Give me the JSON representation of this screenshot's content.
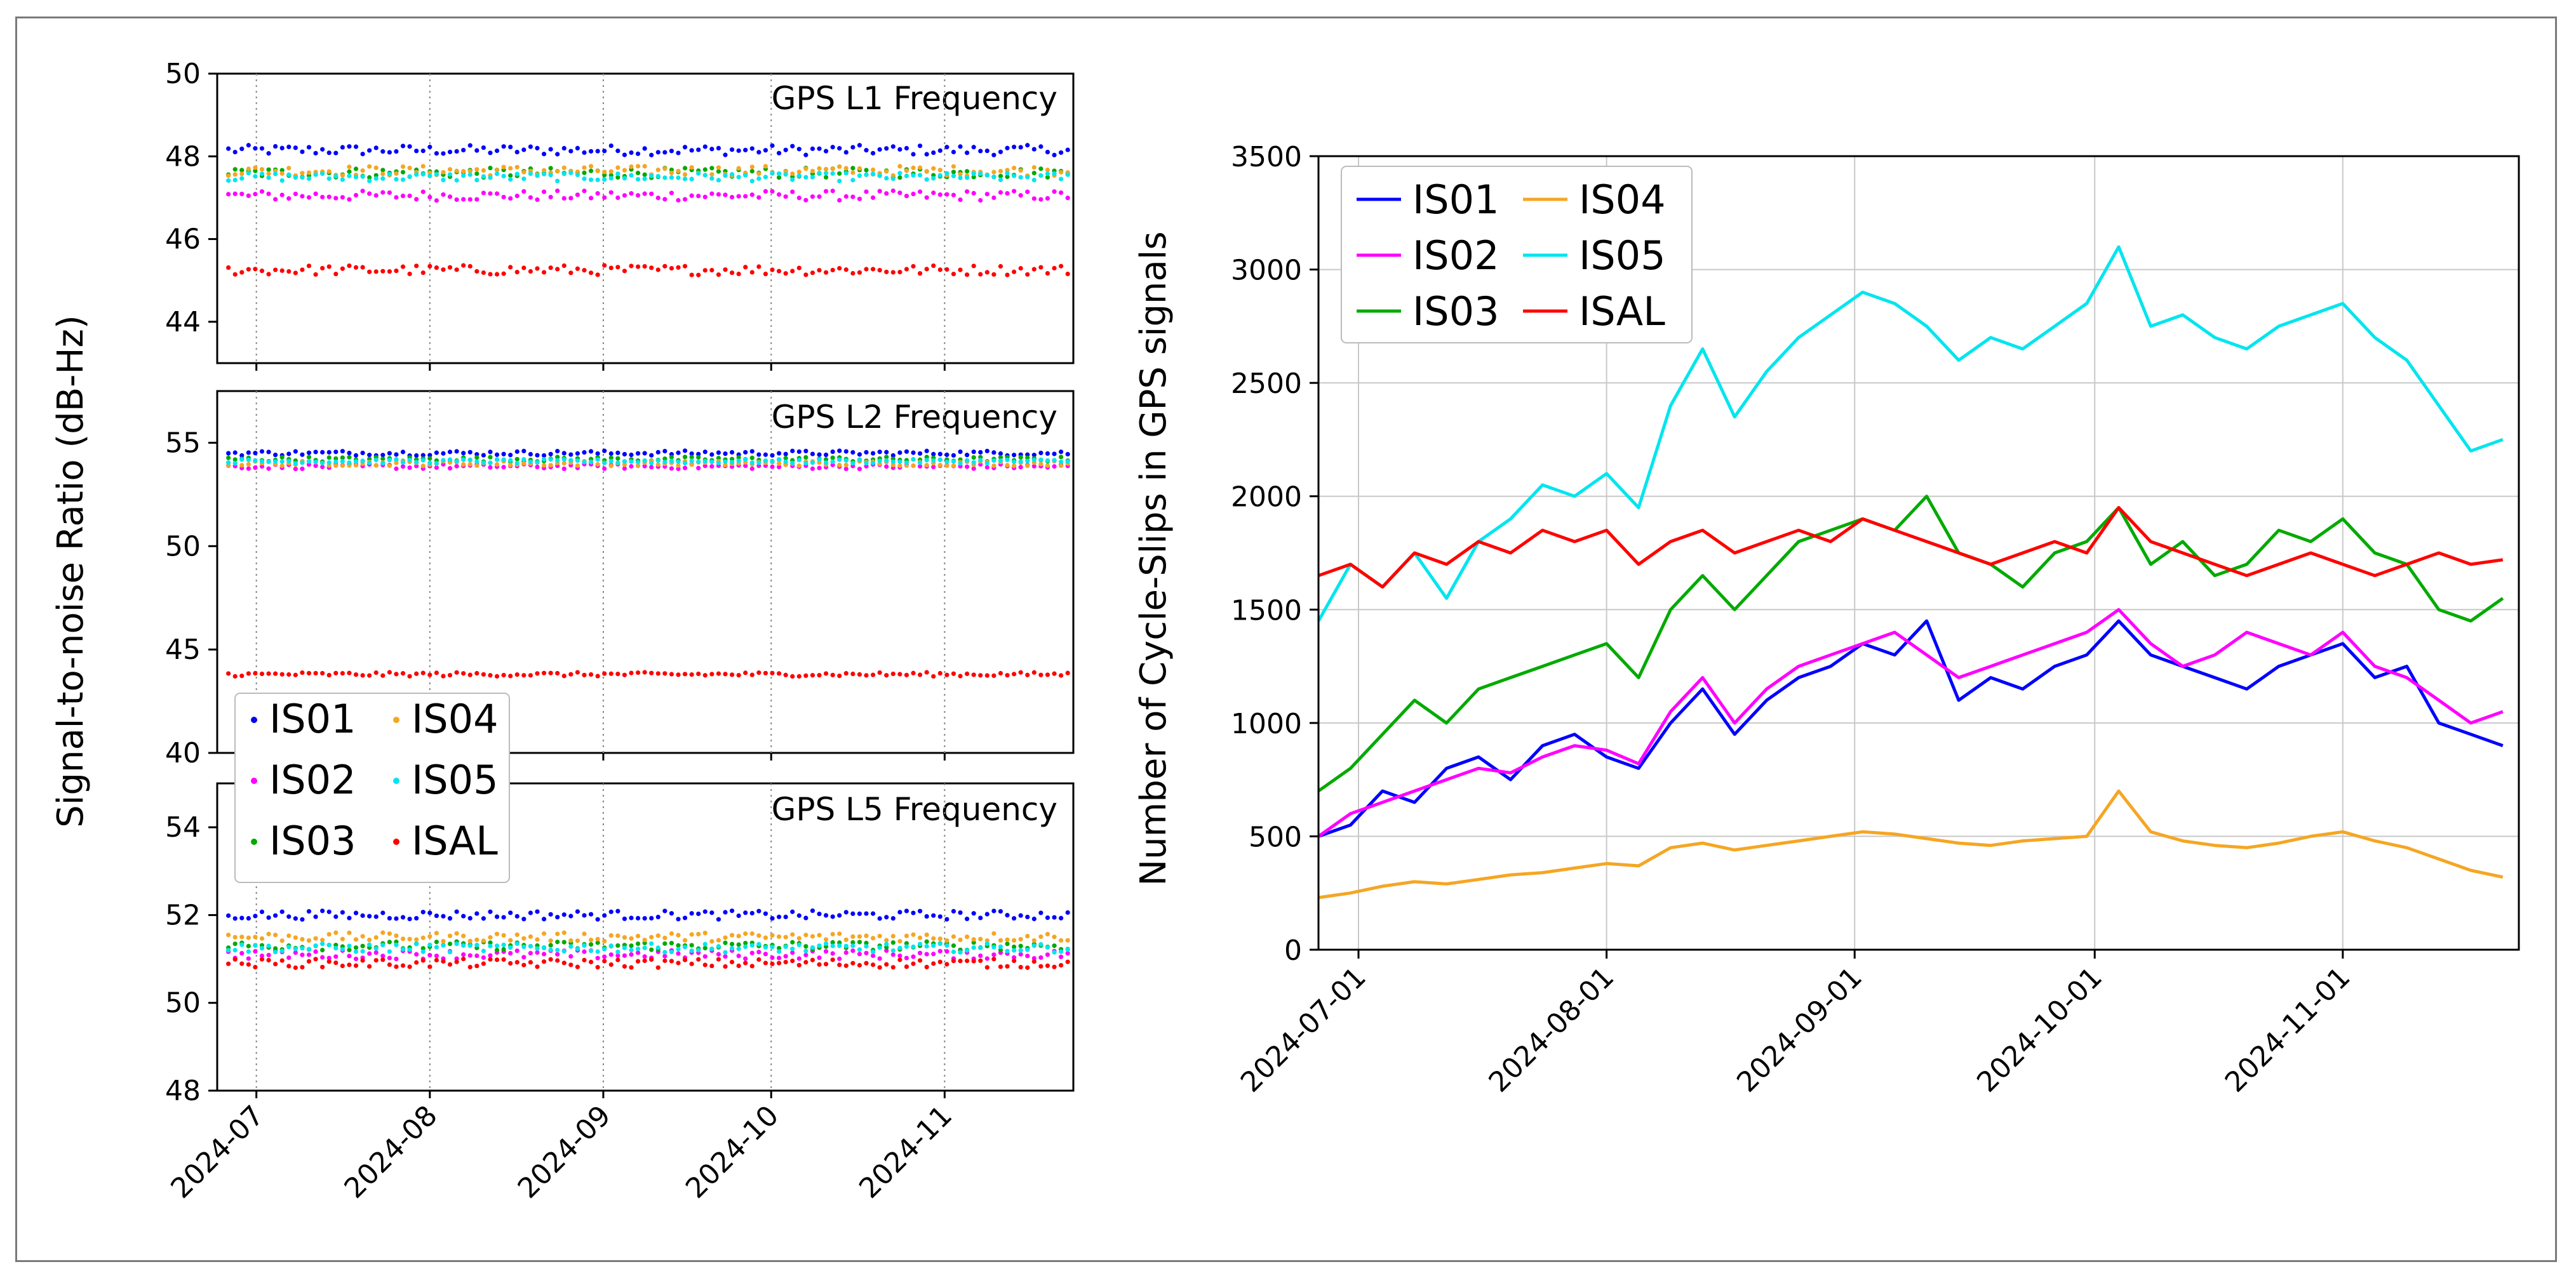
{
  "chart_data": [
    {
      "type": "scatter",
      "title": "GPS L1 Frequency",
      "ylim": [
        43,
        50
      ],
      "yticks": [
        44,
        46,
        48,
        50
      ],
      "x_range": [
        "2024-06-24",
        "2024-11-24"
      ],
      "grid": "vertical dotted",
      "series": [
        {
          "name": "IS01",
          "color": "#0000ff",
          "mean": 48.15,
          "jitter": 0.12
        },
        {
          "name": "IS02",
          "color": "#ff00ff",
          "mean": 47.05,
          "jitter": 0.12
        },
        {
          "name": "IS03",
          "color": "#00aa00",
          "mean": 47.6,
          "jitter": 0.12
        },
        {
          "name": "IS04",
          "color": "#f5a623",
          "mean": 47.65,
          "jitter": 0.12
        },
        {
          "name": "IS05",
          "color": "#00e5ee",
          "mean": 47.5,
          "jitter": 0.1
        },
        {
          "name": "ISAL",
          "color": "#ff0000",
          "mean": 45.25,
          "jitter": 0.12
        }
      ]
    },
    {
      "type": "scatter",
      "title": "GPS L2 Frequency",
      "ylim": [
        40,
        57.5
      ],
      "yticks": [
        40,
        45,
        50,
        55
      ],
      "x_range": [
        "2024-06-24",
        "2024-11-24"
      ],
      "grid": "vertical dotted",
      "series": [
        {
          "name": "IS01",
          "color": "#0000ff",
          "mean": 54.5,
          "jitter": 0.12
        },
        {
          "name": "IS02",
          "color": "#ff00ff",
          "mean": 53.85,
          "jitter": 0.12
        },
        {
          "name": "IS03",
          "color": "#00aa00",
          "mean": 54.2,
          "jitter": 0.12
        },
        {
          "name": "IS04",
          "color": "#f5a623",
          "mean": 54.0,
          "jitter": 0.12
        },
        {
          "name": "IS05",
          "color": "#00e5ee",
          "mean": 54.1,
          "jitter": 0.1
        },
        {
          "name": "ISAL",
          "color": "#ff0000",
          "mean": 43.8,
          "jitter": 0.1
        }
      ]
    },
    {
      "type": "scatter",
      "title": "GPS L5 Frequency",
      "ylim": [
        48,
        55
      ],
      "yticks": [
        48,
        50,
        52,
        54
      ],
      "x_range": [
        "2024-06-24",
        "2024-11-24"
      ],
      "grid": "vertical dotted",
      "series": [
        {
          "name": "IS01",
          "color": "#0000ff",
          "mean": 52.0,
          "jitter": 0.1
        },
        {
          "name": "IS02",
          "color": "#ff00ff",
          "mean": 51.1,
          "jitter": 0.1
        },
        {
          "name": "IS03",
          "color": "#00aa00",
          "mean": 51.3,
          "jitter": 0.1
        },
        {
          "name": "IS04",
          "color": "#f5a623",
          "mean": 51.5,
          "jitter": 0.1
        },
        {
          "name": "IS05",
          "color": "#00e5ee",
          "mean": 51.25,
          "jitter": 0.1
        },
        {
          "name": "ISAL",
          "color": "#ff0000",
          "mean": 50.9,
          "jitter": 0.1
        }
      ]
    },
    {
      "type": "line",
      "ylabel": "Number of Cycle-Slips in GPS signals",
      "ylim": [
        0,
        3500
      ],
      "yticks": [
        0,
        500,
        1000,
        1500,
        2000,
        2500,
        3000,
        3500
      ],
      "x_range": [
        "2024-06-26",
        "2024-11-23"
      ],
      "x_dates": [
        "2024-06-26",
        "2024-06-30",
        "2024-07-04",
        "2024-07-08",
        "2024-07-12",
        "2024-07-16",
        "2024-07-20",
        "2024-07-24",
        "2024-07-28",
        "2024-08-01",
        "2024-08-05",
        "2024-08-09",
        "2024-08-13",
        "2024-08-17",
        "2024-08-21",
        "2024-08-25",
        "2024-08-29",
        "2024-09-02",
        "2024-09-06",
        "2024-09-10",
        "2024-09-14",
        "2024-09-18",
        "2024-09-22",
        "2024-09-26",
        "2024-09-30",
        "2024-10-04",
        "2024-10-08",
        "2024-10-12",
        "2024-10-16",
        "2024-10-20",
        "2024-10-24",
        "2024-10-28",
        "2024-11-01",
        "2024-11-05",
        "2024-11-09",
        "2024-11-13",
        "2024-11-17",
        "2024-11-21"
      ],
      "grid": true,
      "legend": "top-left",
      "series": [
        {
          "name": "IS01",
          "color": "#0000ff",
          "values": [
            500,
            550,
            700,
            650,
            800,
            850,
            750,
            900,
            950,
            850,
            800,
            1000,
            1150,
            950,
            1100,
            1200,
            1250,
            1350,
            1300,
            1450,
            1100,
            1200,
            1150,
            1250,
            1300,
            1450,
            1300,
            1250,
            1200,
            1150,
            1250,
            1300,
            1350,
            1200,
            1250,
            1000,
            950,
            900
          ]
        },
        {
          "name": "IS02",
          "color": "#ff00ff",
          "values": [
            500,
            600,
            650,
            700,
            750,
            800,
            780,
            850,
            900,
            880,
            820,
            1050,
            1200,
            1000,
            1150,
            1250,
            1300,
            1350,
            1400,
            1300,
            1200,
            1250,
            1300,
            1350,
            1400,
            1500,
            1350,
            1250,
            1300,
            1400,
            1350,
            1300,
            1400,
            1250,
            1200,
            1100,
            1000,
            1050
          ]
        },
        {
          "name": "IS03",
          "color": "#00aa00",
          "values": [
            700,
            800,
            950,
            1100,
            1000,
            1150,
            1200,
            1250,
            1300,
            1350,
            1200,
            1500,
            1650,
            1500,
            1650,
            1800,
            1850,
            1900,
            1850,
            2000,
            1750,
            1700,
            1600,
            1750,
            1800,
            1950,
            1700,
            1800,
            1650,
            1700,
            1850,
            1800,
            1900,
            1750,
            1700,
            1500,
            1450,
            1550
          ]
        },
        {
          "name": "IS04",
          "color": "#f5a623",
          "values": [
            230,
            250,
            280,
            300,
            290,
            310,
            330,
            340,
            360,
            380,
            370,
            450,
            470,
            440,
            460,
            480,
            500,
            520,
            510,
            490,
            470,
            460,
            480,
            490,
            500,
            700,
            520,
            480,
            460,
            450,
            470,
            500,
            520,
            480,
            450,
            400,
            350,
            320
          ]
        },
        {
          "name": "IS05",
          "color": "#00e5ee",
          "values": [
            1450,
            1700,
            1600,
            1750,
            1550,
            1800,
            1900,
            2050,
            2000,
            2100,
            1950,
            2400,
            2650,
            2350,
            2550,
            2700,
            2800,
            2900,
            2850,
            2750,
            2600,
            2700,
            2650,
            2750,
            2850,
            3100,
            2750,
            2800,
            2700,
            2650,
            2750,
            2800,
            2850,
            2700,
            2600,
            2400,
            2200,
            2250
          ]
        },
        {
          "name": "ISAL",
          "color": "#ff0000",
          "values": [
            1650,
            1700,
            1600,
            1750,
            1700,
            1800,
            1750,
            1850,
            1800,
            1850,
            1700,
            1800,
            1850,
            1750,
            1800,
            1850,
            1800,
            1900,
            1850,
            1800,
            1750,
            1700,
            1750,
            1800,
            1750,
            1950,
            1800,
            1750,
            1700,
            1650,
            1700,
            1750,
            1700,
            1650,
            1700,
            1750,
            1700,
            1720
          ]
        }
      ]
    }
  ],
  "panels": {
    "l1": {
      "title": "GPS L1 Frequency"
    },
    "l2": {
      "title": "GPS L2 Frequency"
    },
    "l5": {
      "title": "GPS L5 Frequency"
    }
  },
  "left_axis": {
    "ylabel": "Signal-to-noise Ratio (dB-Hz)",
    "x_tick_labels": [
      "2024-07",
      "2024-08",
      "2024-09",
      "2024-10",
      "2024-11"
    ],
    "x_tick_dates": [
      "2024-07-01",
      "2024-08-01",
      "2024-09-01",
      "2024-10-01",
      "2024-11-01"
    ]
  },
  "right_axis": {
    "ylabel": "Number of Cycle-Slips in GPS signals",
    "x_tick_labels": [
      "2024-07-01",
      "2024-08-01",
      "2024-09-01",
      "2024-10-01",
      "2024-11-01"
    ],
    "x_tick_dates": [
      "2024-07-01",
      "2024-08-01",
      "2024-09-01",
      "2024-10-01",
      "2024-11-01"
    ]
  },
  "legend_items": [
    {
      "name": "IS01",
      "color": "#0000ff"
    },
    {
      "name": "IS02",
      "color": "#ff00ff"
    },
    {
      "name": "IS03",
      "color": "#00aa00"
    },
    {
      "name": "IS04",
      "color": "#f5a623"
    },
    {
      "name": "IS05",
      "color": "#00e5ee"
    },
    {
      "name": "ISAL",
      "color": "#ff0000"
    }
  ]
}
